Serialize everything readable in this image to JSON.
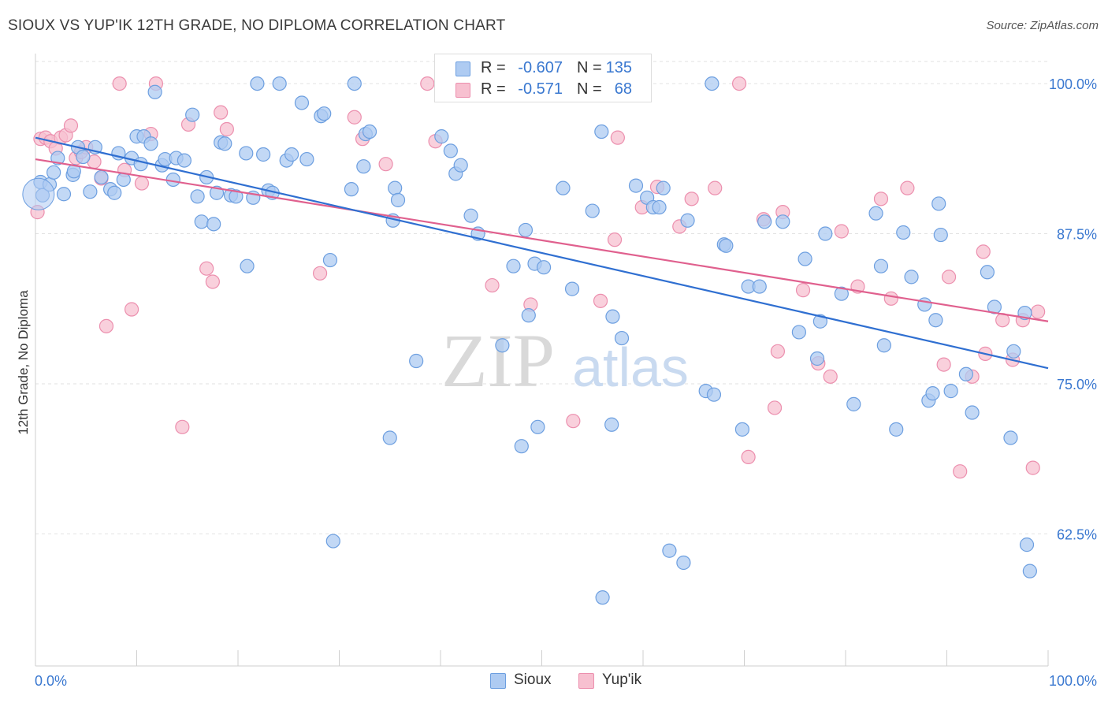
{
  "title": "SIOUX VS YUP'IK 12TH GRADE, NO DIPLOMA CORRELATION CHART",
  "source": "Source: ZipAtlas.com",
  "watermark": {
    "zip": "ZIP",
    "atlas": "atlas"
  },
  "legend_stats": [
    {
      "r_label": "R =",
      "r_value": "-0.607",
      "n_label": "N =",
      "n_value": "135"
    },
    {
      "r_label": "R =",
      "r_value": "-0.571",
      "n_label": "N =",
      "n_value": "68"
    }
  ],
  "colors": {
    "sioux_fill": "#aecbf2",
    "sioux_stroke": "#6d9fe0",
    "sioux_line": "#2f6fd1",
    "yupik_fill": "#f7c0d0",
    "yupik_stroke": "#ec8fae",
    "yupik_line": "#e0608e",
    "axis_text": "#3a78d0",
    "grid": "#e2e2e2"
  },
  "chart_data": {
    "type": "scatter",
    "title": "SIOUX VS YUP'IK 12TH GRADE, NO DIPLOMA CORRELATION CHART",
    "xlabel": "",
    "ylabel": "12th Grade, No Diploma",
    "xlim": [
      0,
      100
    ],
    "ylim": [
      51.5,
      102.5
    ],
    "x_tick_labels": [
      "0.0%",
      "100.0%"
    ],
    "y_ticks": [
      62.5,
      75.0,
      87.5,
      100.0
    ],
    "y_tick_labels": [
      "62.5%",
      "75.0%",
      "87.5%",
      "100.0%"
    ],
    "grid": true,
    "legend_position": "bottom",
    "series": [
      {
        "name": "Sioux",
        "trend": {
          "x": [
            0,
            100
          ],
          "y": [
            95.5,
            76.3
          ]
        },
        "points": [
          [
            0.5,
            91.8
          ],
          [
            0.7,
            90.7
          ],
          [
            1.4,
            91.6
          ],
          [
            1.8,
            92.6
          ],
          [
            2.2,
            93.8
          ],
          [
            2.8,
            90.8
          ],
          [
            3.7,
            92.4
          ],
          [
            3.8,
            92.7
          ],
          [
            4.2,
            94.7
          ],
          [
            4.7,
            93.9
          ],
          [
            5.4,
            91.0
          ],
          [
            5.9,
            94.7
          ],
          [
            6.5,
            92.2
          ],
          [
            7.4,
            91.2
          ],
          [
            7.8,
            90.9
          ],
          [
            8.2,
            94.2
          ],
          [
            8.7,
            92.0
          ],
          [
            9.5,
            93.8
          ],
          [
            10.0,
            95.6
          ],
          [
            10.4,
            93.3
          ],
          [
            10.7,
            95.6
          ],
          [
            11.4,
            95.0
          ],
          [
            11.8,
            99.3
          ],
          [
            12.5,
            93.2
          ],
          [
            12.8,
            93.7
          ],
          [
            13.6,
            92.0
          ],
          [
            13.9,
            93.8
          ],
          [
            14.7,
            93.6
          ],
          [
            15.5,
            97.4
          ],
          [
            16.0,
            90.6
          ],
          [
            16.4,
            88.5
          ],
          [
            16.9,
            92.2
          ],
          [
            17.6,
            88.3
          ],
          [
            17.9,
            90.9
          ],
          [
            18.3,
            95.1
          ],
          [
            18.7,
            95.0
          ],
          [
            19.3,
            90.7
          ],
          [
            19.8,
            90.6
          ],
          [
            20.8,
            94.2
          ],
          [
            20.9,
            84.8
          ],
          [
            21.5,
            90.5
          ],
          [
            21.9,
            100.0
          ],
          [
            22.5,
            94.1
          ],
          [
            23.0,
            91.1
          ],
          [
            23.4,
            90.9
          ],
          [
            24.1,
            100.0
          ],
          [
            24.8,
            93.6
          ],
          [
            25.3,
            94.1
          ],
          [
            26.3,
            98.4
          ],
          [
            26.8,
            93.7
          ],
          [
            28.2,
            97.3
          ],
          [
            28.5,
            97.5
          ],
          [
            29.1,
            85.3
          ],
          [
            29.4,
            61.9
          ],
          [
            31.2,
            91.2
          ],
          [
            31.5,
            100.0
          ],
          [
            32.4,
            93.1
          ],
          [
            32.6,
            95.8
          ],
          [
            33.0,
            96.0
          ],
          [
            35.0,
            70.5
          ],
          [
            35.3,
            88.6
          ],
          [
            35.5,
            91.3
          ],
          [
            35.8,
            90.3
          ],
          [
            37.6,
            76.9
          ],
          [
            40.1,
            95.6
          ],
          [
            41.0,
            94.4
          ],
          [
            41.5,
            92.5
          ],
          [
            42.0,
            93.2
          ],
          [
            43.0,
            89.0
          ],
          [
            43.7,
            87.5
          ],
          [
            44.2,
            100.0
          ],
          [
            46.1,
            78.2
          ],
          [
            47.2,
            84.8
          ],
          [
            48.0,
            69.8
          ],
          [
            48.4,
            87.8
          ],
          [
            48.7,
            80.7
          ],
          [
            49.3,
            85.0
          ],
          [
            49.6,
            71.4
          ],
          [
            50.2,
            84.7
          ],
          [
            52.1,
            91.3
          ],
          [
            53.0,
            82.9
          ],
          [
            55.0,
            89.4
          ],
          [
            55.9,
            96.0
          ],
          [
            56.0,
            57.2
          ],
          [
            57.0,
            80.6
          ],
          [
            57.9,
            78.8
          ],
          [
            59.3,
            91.5
          ],
          [
            60.4,
            90.5
          ],
          [
            61.0,
            89.7
          ],
          [
            61.6,
            89.7
          ],
          [
            62.0,
            91.3
          ],
          [
            62.6,
            61.1
          ],
          [
            64.0,
            60.1
          ],
          [
            64.4,
            88.6
          ],
          [
            66.2,
            74.4
          ],
          [
            66.8,
            100.0
          ],
          [
            68.0,
            86.6
          ],
          [
            68.2,
            86.5
          ],
          [
            69.8,
            71.2
          ],
          [
            70.4,
            83.1
          ],
          [
            71.5,
            83.1
          ],
          [
            72.0,
            88.5
          ],
          [
            73.8,
            88.5
          ],
          [
            75.4,
            79.3
          ],
          [
            76.0,
            85.4
          ],
          [
            77.2,
            77.1
          ],
          [
            77.5,
            80.2
          ],
          [
            78.0,
            87.5
          ],
          [
            79.6,
            82.5
          ],
          [
            80.8,
            73.3
          ],
          [
            83.0,
            89.2
          ],
          [
            83.5,
            84.8
          ],
          [
            83.8,
            78.2
          ],
          [
            85.0,
            71.2
          ],
          [
            85.7,
            87.6
          ],
          [
            86.5,
            83.9
          ],
          [
            87.8,
            81.6
          ],
          [
            88.2,
            73.6
          ],
          [
            88.6,
            74.2
          ],
          [
            88.9,
            80.3
          ],
          [
            89.2,
            90.0
          ],
          [
            89.4,
            87.4
          ],
          [
            90.4,
            74.4
          ],
          [
            91.9,
            75.8
          ],
          [
            92.5,
            72.6
          ],
          [
            94.0,
            84.3
          ],
          [
            94.7,
            81.4
          ],
          [
            96.3,
            70.5
          ],
          [
            96.6,
            77.7
          ],
          [
            97.7,
            80.9
          ],
          [
            97.9,
            61.6
          ],
          [
            98.2,
            59.4
          ],
          [
            48.1,
            100.0
          ],
          [
            56.9,
            71.6
          ],
          [
            67.0,
            74.1
          ]
        ]
      },
      {
        "name": "Yup'ik",
        "trend": {
          "x": [
            0,
            100
          ],
          "y": [
            93.7,
            80.2
          ]
        },
        "points": [
          [
            0.2,
            89.3
          ],
          [
            0.5,
            95.4
          ],
          [
            1.0,
            95.5
          ],
          [
            1.5,
            95.2
          ],
          [
            2.0,
            94.6
          ],
          [
            2.5,
            95.5
          ],
          [
            3.0,
            95.7
          ],
          [
            3.5,
            96.5
          ],
          [
            4.0,
            93.8
          ],
          [
            4.5,
            94.3
          ],
          [
            5.0,
            94.7
          ],
          [
            5.8,
            93.5
          ],
          [
            6.5,
            92.1
          ],
          [
            7.0,
            79.8
          ],
          [
            8.3,
            100.0
          ],
          [
            8.8,
            92.8
          ],
          [
            9.5,
            81.2
          ],
          [
            10.5,
            91.7
          ],
          [
            11.4,
            95.8
          ],
          [
            11.9,
            100.0
          ],
          [
            14.5,
            71.4
          ],
          [
            15.1,
            96.6
          ],
          [
            16.9,
            84.6
          ],
          [
            17.5,
            83.5
          ],
          [
            18.3,
            97.6
          ],
          [
            18.9,
            96.2
          ],
          [
            28.1,
            84.2
          ],
          [
            31.5,
            97.2
          ],
          [
            32.3,
            95.4
          ],
          [
            34.6,
            93.3
          ],
          [
            38.7,
            100.0
          ],
          [
            39.5,
            95.2
          ],
          [
            45.1,
            83.2
          ],
          [
            48.9,
            81.6
          ],
          [
            53.1,
            71.9
          ],
          [
            55.8,
            81.9
          ],
          [
            57.2,
            87.0
          ],
          [
            57.5,
            95.5
          ],
          [
            59.9,
            89.7
          ],
          [
            61.4,
            91.4
          ],
          [
            63.6,
            88.1
          ],
          [
            64.8,
            90.4
          ],
          [
            67.1,
            91.3
          ],
          [
            69.5,
            100.0
          ],
          [
            70.4,
            68.9
          ],
          [
            71.9,
            88.7
          ],
          [
            73.0,
            73.0
          ],
          [
            73.3,
            77.7
          ],
          [
            73.8,
            89.3
          ],
          [
            75.8,
            82.8
          ],
          [
            77.3,
            76.7
          ],
          [
            78.5,
            75.6
          ],
          [
            79.6,
            87.7
          ],
          [
            81.2,
            83.1
          ],
          [
            83.5,
            90.4
          ],
          [
            84.5,
            82.1
          ],
          [
            86.1,
            91.3
          ],
          [
            89.7,
            76.6
          ],
          [
            90.2,
            83.9
          ],
          [
            91.3,
            67.7
          ],
          [
            92.5,
            75.6
          ],
          [
            93.6,
            86.0
          ],
          [
            93.8,
            77.5
          ],
          [
            95.5,
            80.3
          ],
          [
            96.5,
            77.0
          ],
          [
            97.5,
            80.3
          ],
          [
            98.5,
            68.0
          ],
          [
            99.0,
            81.0
          ]
        ]
      }
    ]
  }
}
